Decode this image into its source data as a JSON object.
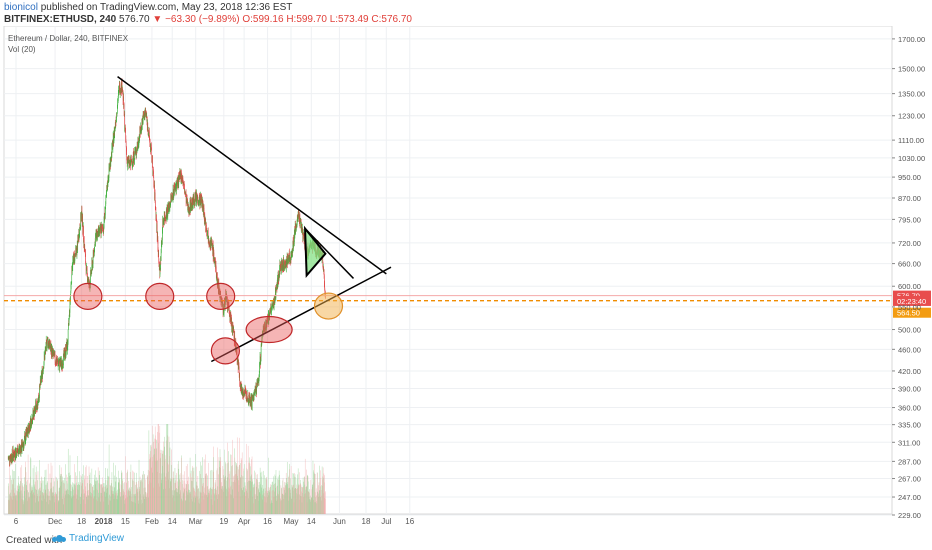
{
  "header": {
    "author": "bionicol",
    "published": "published on TradingView.com, May 23, 2018 12:36 EST",
    "symbol": "BITFINEX:ETHUSD, 240",
    "last": "576.70",
    "change_arrow": "▼",
    "change": "−63.30 (−9.89%)",
    "ohlc": {
      "o": "O:599.16",
      "h": "H:599.70",
      "l": "L:573.49",
      "c": "C:576.70"
    }
  },
  "legend": {
    "title": "Ethereum / Dollar, 240, BITFINEX",
    "vol": "Vol (20)"
  },
  "footer": {
    "created": "Created with",
    "brand": "TradingView"
  },
  "colors": {
    "up": "#3db03d",
    "down": "#e04646",
    "vol_up": "#8ecf8e",
    "vol_down": "#f0a5a5",
    "support_dashed": "#f08c00",
    "price_label": "#e84d4d",
    "support_label": "#f39c12",
    "ellipse_red": "#e85a5a",
    "ellipse_orange": "#f2b04a",
    "pennant_fill": "#7fe07f"
  },
  "chart_data": {
    "type": "candlestick",
    "title": "Ethereum / Dollar, 240, BITFINEX",
    "y_scale": "log",
    "ylim": [
      229,
      1750
    ],
    "yticks": [
      1700,
      1500,
      1350,
      1230,
      1110,
      1030,
      950,
      870,
      795,
      720,
      660,
      600,
      550,
      500,
      460,
      420,
      390,
      360,
      335,
      311,
      287,
      267,
      247,
      229
    ],
    "xticks": [
      {
        "label": "6",
        "date": "2017-11-06"
      },
      {
        "label": "Dec",
        "date": "2017-12-01"
      },
      {
        "label": "18",
        "date": "2017-12-18"
      },
      {
        "label": "2018",
        "date": "2018-01-01"
      },
      {
        "label": "15",
        "date": "2018-01-15"
      },
      {
        "label": "Feb",
        "date": "2018-02-01"
      },
      {
        "label": "14",
        "date": "2018-02-14"
      },
      {
        "label": "Mar",
        "date": "2018-03-01"
      },
      {
        "label": "19",
        "date": "2018-03-19"
      },
      {
        "label": "Apr",
        "date": "2018-04-01"
      },
      {
        "label": "16",
        "date": "2018-04-16"
      },
      {
        "label": "May",
        "date": "2018-05-01"
      },
      {
        "label": "14",
        "date": "2018-05-14"
      },
      {
        "label": "Jun",
        "date": "2018-06-01"
      },
      {
        "label": "18",
        "date": "2018-06-18"
      },
      {
        "label": "Jul",
        "date": "2018-07-01"
      },
      {
        "label": "16",
        "date": "2018-07-16"
      }
    ],
    "price_path": [
      {
        "date": "2017-11-01",
        "price": 290
      },
      {
        "date": "2017-11-10",
        "price": 305
      },
      {
        "date": "2017-11-20",
        "price": 370
      },
      {
        "date": "2017-11-26",
        "price": 480
      },
      {
        "date": "2017-12-01",
        "price": 440
      },
      {
        "date": "2017-12-05",
        "price": 430
      },
      {
        "date": "2017-12-09",
        "price": 470
      },
      {
        "date": "2017-12-12",
        "price": 660
      },
      {
        "date": "2017-12-15",
        "price": 700
      },
      {
        "date": "2017-12-18",
        "price": 820
      },
      {
        "date": "2017-12-21",
        "price": 640
      },
      {
        "date": "2017-12-23",
        "price": 600
      },
      {
        "date": "2017-12-27",
        "price": 740
      },
      {
        "date": "2018-01-01",
        "price": 770
      },
      {
        "date": "2018-01-04",
        "price": 950
      },
      {
        "date": "2018-01-08",
        "price": 1150
      },
      {
        "date": "2018-01-11",
        "price": 1380
      },
      {
        "date": "2018-01-13",
        "price": 1400
      },
      {
        "date": "2018-01-16",
        "price": 1020
      },
      {
        "date": "2018-01-18",
        "price": 1000
      },
      {
        "date": "2018-01-22",
        "price": 1060
      },
      {
        "date": "2018-01-26",
        "price": 1210
      },
      {
        "date": "2018-01-28",
        "price": 1250
      },
      {
        "date": "2018-02-01",
        "price": 1030
      },
      {
        "date": "2018-02-03",
        "price": 860
      },
      {
        "date": "2018-02-06",
        "price": 630
      },
      {
        "date": "2018-02-08",
        "price": 790
      },
      {
        "date": "2018-02-12",
        "price": 840
      },
      {
        "date": "2018-02-15",
        "price": 900
      },
      {
        "date": "2018-02-20",
        "price": 960
      },
      {
        "date": "2018-02-24",
        "price": 830
      },
      {
        "date": "2018-03-01",
        "price": 870
      },
      {
        "date": "2018-03-05",
        "price": 860
      },
      {
        "date": "2018-03-08",
        "price": 760
      },
      {
        "date": "2018-03-12",
        "price": 700
      },
      {
        "date": "2018-03-15",
        "price": 610
      },
      {
        "date": "2018-03-19",
        "price": 540
      },
      {
        "date": "2018-03-20",
        "price": 575
      },
      {
        "date": "2018-03-23",
        "price": 530
      },
      {
        "date": "2018-03-27",
        "price": 460
      },
      {
        "date": "2018-03-30",
        "price": 390
      },
      {
        "date": "2018-04-02",
        "price": 380
      },
      {
        "date": "2018-04-06",
        "price": 370
      },
      {
        "date": "2018-04-10",
        "price": 400
      },
      {
        "date": "2018-04-13",
        "price": 500
      },
      {
        "date": "2018-04-16",
        "price": 520
      },
      {
        "date": "2018-04-20",
        "price": 560
      },
      {
        "date": "2018-04-24",
        "price": 650
      },
      {
        "date": "2018-04-27",
        "price": 660
      },
      {
        "date": "2018-05-01",
        "price": 680
      },
      {
        "date": "2018-05-04",
        "price": 770
      },
      {
        "date": "2018-05-06",
        "price": 810
      },
      {
        "date": "2018-05-09",
        "price": 740
      },
      {
        "date": "2018-05-11",
        "price": 690
      },
      {
        "date": "2018-05-14",
        "price": 710
      },
      {
        "date": "2018-05-18",
        "price": 700
      },
      {
        "date": "2018-05-21",
        "price": 690
      },
      {
        "date": "2018-05-23",
        "price": 576.7
      }
    ],
    "last_price": {
      "value": 576.7,
      "label": "576.70"
    },
    "countdown": {
      "value": 564,
      "label": "02:23:40"
    },
    "support": {
      "value": 564.5,
      "label": "564.50"
    },
    "trendlines": [
      {
        "name": "descending resistance",
        "from": {
          "date": "2018-01-10",
          "price": 1450
        },
        "to": {
          "date": "2018-07-01",
          "price": 632
        }
      },
      {
        "name": "ascending support",
        "from": {
          "date": "2018-03-11",
          "price": 437
        },
        "to": {
          "date": "2018-07-04",
          "price": 650
        }
      },
      {
        "name": "pennant upper extension",
        "from": {
          "date": "2018-05-11",
          "price": 760
        },
        "to": {
          "date": "2018-06-10",
          "price": 620
        }
      }
    ],
    "pennant": [
      {
        "date": "2018-05-10",
        "price": 765
      },
      {
        "date": "2018-05-23",
        "price": 688
      },
      {
        "date": "2018-05-11",
        "price": 628
      }
    ],
    "highlights": [
      {
        "date": "2017-12-22",
        "price": 575,
        "color": "red"
      },
      {
        "date": "2018-02-06",
        "price": 575,
        "color": "red"
      },
      {
        "date": "2018-03-17",
        "price": 575,
        "color": "red"
      },
      {
        "date": "2018-03-20",
        "price": 457,
        "color": "red"
      },
      {
        "date": "2018-04-17",
        "price": 500,
        "color": "red"
      },
      {
        "date": "2018-05-25",
        "price": 552,
        "color": "orange"
      }
    ],
    "volume": {
      "max_value": 1.0,
      "daily_profile": "rises Dec–Jan, spikes early Feb, moderate through Apr–May"
    }
  }
}
